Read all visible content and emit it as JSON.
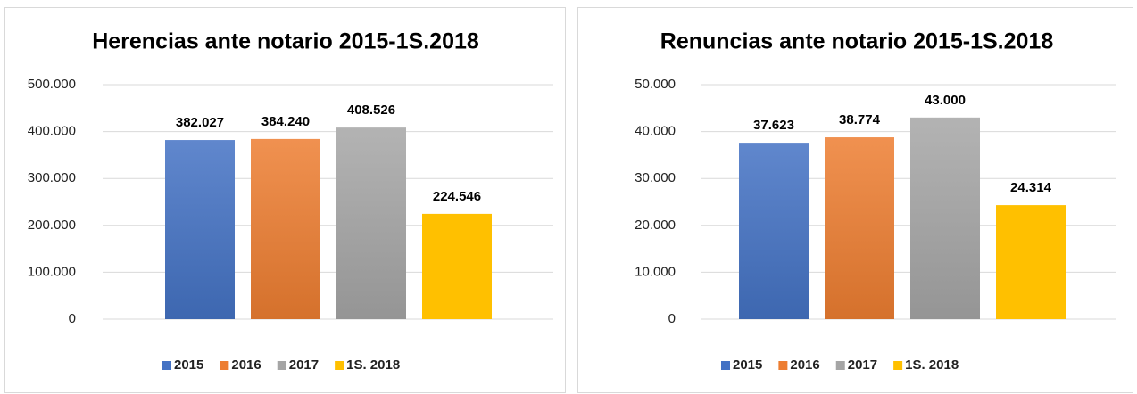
{
  "chart_data": [
    {
      "type": "bar",
      "title": "Herencias ante notario 2015-1S.2018",
      "categories": [
        null
      ],
      "series": [
        {
          "name": "2015",
          "color": "#4472c4",
          "values": [
            382027
          ],
          "value_labels": [
            "382.027"
          ]
        },
        {
          "name": "2016",
          "color": "#ed7d31",
          "values": [
            384240
          ],
          "value_labels": [
            "384.240"
          ]
        },
        {
          "name": "2017",
          "color": "#a5a5a5",
          "values": [
            408526
          ],
          "value_labels": [
            "408.526"
          ]
        },
        {
          "name": "1S. 2018",
          "color": "#ffc000",
          "values": [
            224546
          ],
          "value_labels": [
            "224.546"
          ]
        }
      ],
      "ylim": [
        0,
        500000
      ],
      "yticks": [
        0,
        {
          "value": 100000,
          "label": "100.000"
        },
        {
          "value": 200000,
          "label": "200.000"
        },
        {
          "value": 300000,
          "label": "300.000"
        },
        {
          "value": 400000,
          "label": "400.000"
        },
        {
          "value": 500000,
          "label": "500.000"
        }
      ],
      "grid": true,
      "legend": "bottom"
    },
    {
      "type": "bar",
      "title": "Renuncias ante notario 2015-1S.2018",
      "categories": [
        null
      ],
      "series": [
        {
          "name": "2015",
          "color": "#4472c4",
          "values": [
            37623
          ],
          "value_labels": [
            "37.623"
          ]
        },
        {
          "name": "2016",
          "color": "#ed7d31",
          "values": [
            38774
          ],
          "value_labels": [
            "38.774"
          ]
        },
        {
          "name": "2017",
          "color": "#a5a5a5",
          "values": [
            43000
          ],
          "value_labels": [
            "43.000"
          ]
        },
        {
          "name": "1S. 2018",
          "color": "#ffc000",
          "values": [
            24314
          ],
          "value_labels": [
            "24.314"
          ]
        }
      ],
      "ylim": [
        0,
        50000
      ],
      "yticks": [
        0,
        {
          "value": 10000,
          "label": "10.000"
        },
        {
          "value": 20000,
          "label": "20.000"
        },
        {
          "value": 30000,
          "label": "30.000"
        },
        {
          "value": 40000,
          "label": "40.000"
        },
        {
          "value": 50000,
          "label": "50.000"
        }
      ],
      "grid": true,
      "legend": "bottom"
    }
  ]
}
